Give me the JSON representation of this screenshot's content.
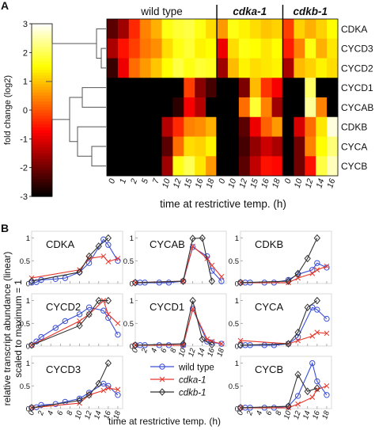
{
  "panels": {
    "a": "A",
    "b": "B"
  },
  "colors": {
    "blue": "#3b4fd8",
    "red": "#e8362b",
    "black": "#333333",
    "grid": "#d9d9d9"
  },
  "chart_data": [
    {
      "type": "heatmap",
      "panel": "A",
      "colorbar": {
        "label": "fold change  (log2)",
        "min": -3,
        "max": 3,
        "ticks": [
          "3",
          "2",
          "1",
          "0",
          "-1",
          "-2",
          "-3"
        ]
      },
      "groups": [
        {
          "name": "wild type",
          "italic": false,
          "cols": [
            "0",
            "1",
            "2",
            "5",
            "7",
            "10",
            "12",
            "15",
            "16",
            "18"
          ]
        },
        {
          "name": "cdka-1",
          "italic": true,
          "cols": [
            "0",
            "10",
            "12",
            "15",
            "16",
            "18"
          ]
        },
        {
          "name": "cdkb-1",
          "italic": true,
          "cols": [
            "0",
            "10",
            "12",
            "14",
            "16"
          ]
        }
      ],
      "rows": [
        "CDKA",
        "CYCD3",
        "CYCD2",
        "CYCD1",
        "CYCAB",
        "CDKB",
        "CYCA",
        "CYCB"
      ],
      "dendrogram": "hierarchical clustering of rows",
      "xlabel": "time at restrictive temp. (h)",
      "values": [
        [
          -2.2,
          -1.6,
          -0.4,
          0.4,
          0.8,
          1.6,
          1.8,
          1.9,
          1.6,
          1.2,
          0.6,
          1.6,
          1.4,
          1.2,
          1.0,
          1.1,
          -0.2,
          1.1,
          0.8,
          1.1,
          1.5
        ],
        [
          -1.5,
          -0.6,
          -0.2,
          0.3,
          0.5,
          1.2,
          1.6,
          1.8,
          1.4,
          1.5,
          -0.9,
          1.2,
          1.6,
          1.5,
          1.3,
          1.5,
          -0.5,
          0.4,
          1.6,
          0.8,
          1.3
        ],
        [
          -2.5,
          -0.9,
          0.2,
          0.6,
          1.0,
          1.5,
          1.9,
          1.6,
          1.8,
          1.7,
          -1.6,
          0.9,
          1.4,
          1.2,
          1.3,
          1.4,
          -1.5,
          0.9,
          1.1,
          1.4,
          1.2
        ],
        [
          -3.0,
          -3.0,
          -3.0,
          -3.0,
          -3.0,
          -3.0,
          -3.0,
          -0.2,
          -1.8,
          -2.4,
          -3.0,
          -3.0,
          -1.9,
          0.9,
          -0.3,
          -0.8,
          -3.0,
          -3.0,
          2.1,
          -3.0,
          -3.0
        ],
        [
          -3.0,
          -3.0,
          -3.0,
          -3.0,
          -3.0,
          -3.0,
          -2.6,
          -0.8,
          -1.4,
          -3.0,
          -3.0,
          -3.0,
          0.2,
          1.8,
          0.4,
          -1.6,
          -3.0,
          -3.0,
          2.4,
          0.4,
          -3.0
        ],
        [
          -3.0,
          -3.0,
          -3.0,
          -3.0,
          -3.0,
          -1.4,
          -0.4,
          0.4,
          0.5,
          0.8,
          -3.0,
          -3.0,
          -2.2,
          -0.9,
          0.1,
          0.6,
          -3.0,
          -1.1,
          0.2,
          1.3,
          2.8
        ],
        [
          -3.0,
          -3.0,
          -3.0,
          -3.0,
          -3.0,
          -2.2,
          0.2,
          1.2,
          1.1,
          1.4,
          -3.0,
          -3.0,
          -2.4,
          -1.7,
          -1.2,
          -1.5,
          -3.0,
          -2.0,
          0.4,
          1.5,
          2.2
        ],
        [
          -3.0,
          -3.0,
          -3.0,
          -3.0,
          -3.0,
          -1.6,
          1.6,
          2.0,
          1.3,
          0.6,
          -3.0,
          -3.0,
          -2.2,
          -1.3,
          -0.6,
          -0.7,
          -3.0,
          -2.0,
          -0.6,
          1.9,
          2.6
        ]
      ]
    },
    {
      "type": "line",
      "panel": "B",
      "ylabel": [
        "relative transcript abundance (linear)",
        "scaled to maximum = 1"
      ],
      "xlabel": "time at restrictive temp. (h)",
      "xticks": [
        "0",
        "2",
        "4",
        "6",
        "8",
        "10",
        "12",
        "14",
        "16",
        "18"
      ],
      "yticks": [
        "0",
        "0.5",
        "1"
      ],
      "xlim": [
        0,
        19
      ],
      "ylim": [
        0,
        1.15
      ],
      "legend": [
        {
          "name": "wild type",
          "italic": false
        },
        {
          "name": "cdka-1",
          "italic": true
        },
        {
          "name": "cdkb-1",
          "italic": true
        }
      ],
      "legend_position": "bottom-center",
      "x": {
        "wild_type": [
          0,
          1,
          2,
          5,
          7,
          10,
          12,
          15,
          16,
          18
        ],
        "cdka_1": [
          0,
          10,
          12,
          15,
          16,
          18
        ],
        "cdkb_1": [
          0,
          10,
          12,
          14,
          16
        ]
      },
      "subplots": [
        {
          "title": "CDKA",
          "wild_type": [
            0.02,
            0.03,
            0.08,
            0.1,
            0.12,
            0.25,
            0.45,
            0.97,
            0.85,
            0.5
          ],
          "cdka_1": [
            0.12,
            0.3,
            0.55,
            0.6,
            0.48,
            0.55
          ],
          "cdkb_1": [
            0.05,
            0.25,
            0.6,
            0.82,
            1.0
          ]
        },
        {
          "title": "CYCAB",
          "wild_type": [
            0.02,
            0.02,
            0.02,
            0.02,
            0.02,
            0.05,
            0.8,
            0.6,
            0.28,
            0.05
          ],
          "cdka_1": [
            0.02,
            0.05,
            0.82,
            0.55,
            0.4,
            0.15
          ],
          "cdkb_1": [
            0.02,
            0.05,
            0.99,
            1.0,
            0.05
          ]
        },
        {
          "title": "CDKB",
          "wild_type": [
            0.02,
            0.02,
            0.02,
            0.02,
            0.02,
            0.08,
            0.2,
            0.3,
            0.45,
            0.35
          ],
          "cdka_1": [
            0.02,
            0.02,
            0.12,
            0.22,
            0.3,
            0.38
          ],
          "cdkb_1": [
            0.02,
            0.05,
            0.22,
            0.55,
            1.0
          ]
        },
        {
          "title": "CYCD2",
          "wild_type": [
            0.02,
            0.1,
            0.2,
            0.4,
            0.55,
            0.7,
            0.85,
            0.78,
            0.62,
            0.25
          ],
          "cdka_1": [
            0.02,
            0.55,
            0.7,
            1.0,
            0.7,
            0.5
          ],
          "cdkb_1": [
            0.02,
            0.45,
            0.7,
            1.0,
            1.0
          ]
        },
        {
          "title": "CYCD1",
          "wild_type": [
            0.02,
            0.02,
            0.02,
            0.02,
            0.02,
            0.02,
            0.82,
            0.1,
            0.08,
            0.05
          ],
          "cdka_1": [
            0.02,
            0.02,
            0.82,
            0.15,
            0.1,
            0.05
          ],
          "cdkb_1": [
            0.02,
            0.05,
            1.0,
            0.15,
            0.03
          ]
        },
        {
          "title": "CYCA",
          "wild_type": [
            0.02,
            0.02,
            0.02,
            0.02,
            0.02,
            0.05,
            0.2,
            0.85,
            0.8,
            0.6
          ],
          "cdka_1": [
            0.12,
            0.05,
            0.12,
            0.22,
            0.3,
            0.28
          ],
          "cdkb_1": [
            0.02,
            0.05,
            0.3,
            0.85,
            1.0
          ]
        },
        {
          "title": "CYCD3",
          "wild_type": [
            0.02,
            0.03,
            0.08,
            0.1,
            0.15,
            0.22,
            0.35,
            0.55,
            0.5,
            0.3
          ],
          "cdka_1": [
            0.02,
            0.12,
            0.3,
            0.4,
            0.45,
            0.42
          ],
          "cdkb_1": [
            0.02,
            0.18,
            0.3,
            0.55,
            1.0
          ]
        },
        {
          "title": "CYCB",
          "wild_type": [
            0.02,
            0.02,
            0.02,
            0.02,
            0.02,
            0.05,
            0.28,
            1.0,
            0.6,
            0.3
          ],
          "cdka_1": [
            0.02,
            0.02,
            0.1,
            0.25,
            0.42,
            0.5
          ],
          "cdkb_1": [
            0.02,
            0.05,
            0.75,
            0.38,
            0.45
          ]
        }
      ]
    }
  ]
}
